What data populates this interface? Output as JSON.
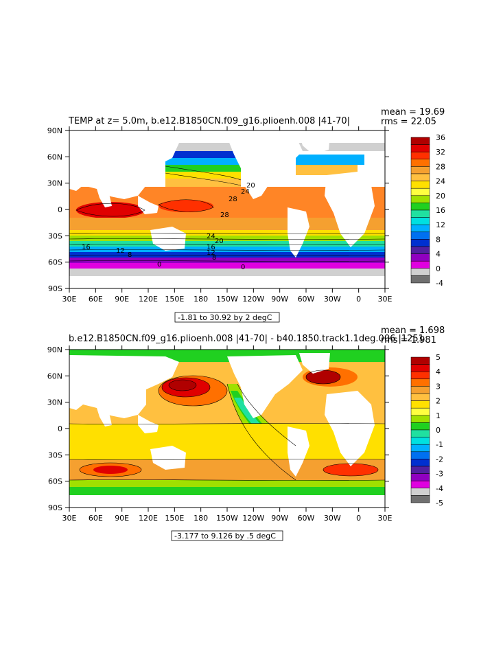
{
  "panels": [
    {
      "title": "TEMP at z=   5.0m, b.e12.B1850CN.f09_g16.plioenh.008 |41-70|",
      "mean_text": "mean = 19.69",
      "rms_text": "rms = 22.05",
      "range_text": "-1.81 to 30.92 by 2 degC",
      "lon_ticks": [
        "30E",
        "60E",
        "90E",
        "120E",
        "150E",
        "180",
        "150W",
        "120W",
        "90W",
        "60W",
        "30W",
        "0",
        "30E"
      ],
      "lat_ticks": [
        "90N",
        "60N",
        "30N",
        "0",
        "30S",
        "60S",
        "90S"
      ],
      "colorbar_labels": [
        "36",
        "32",
        "28",
        "24",
        "20",
        "16",
        "12",
        "8",
        "4",
        "0",
        "-4"
      ],
      "colorbar_colors": [
        "#b00000",
        "#e00000",
        "#ff3000",
        "#ff7000",
        "#f5a030",
        "#ffc040",
        "#ffe000",
        "#ffff40",
        "#a0e000",
        "#20d020",
        "#20e0a0",
        "#00e0e0",
        "#00b0ff",
        "#0070f0",
        "#0030d0",
        "#5020a0",
        "#9000c0",
        "#e000e0",
        "#d0d0d0",
        "#707070"
      ],
      "contour_labels": [
        "28",
        "28",
        "24",
        "20",
        "24",
        "20",
        "16",
        "12",
        "16",
        "12",
        "8",
        "8",
        "0",
        "0"
      ]
    },
    {
      "title": "b.e12.B1850CN.f09_g16.plioenh.008 |41-70| - b40.1850.track1.1deg.006 |1251",
      "mean_text": "mean = 1.698",
      "rms_text": "rms = 1.981",
      "range_text": "-3.177 to 9.126 by .5 degC",
      "lon_ticks": [
        "30E",
        "60E",
        "90E",
        "120E",
        "150E",
        "180",
        "150W",
        "120W",
        "90W",
        "60W",
        "30W",
        "0",
        "30E"
      ],
      "lat_ticks": [
        "90N",
        "60N",
        "30N",
        "0",
        "30S",
        "60S",
        "90S"
      ],
      "colorbar_labels": [
        "5",
        "4",
        "3",
        "2",
        "1",
        "0",
        "-1",
        "-2",
        "-3",
        "-4",
        "-5"
      ],
      "colorbar_colors": [
        "#b00000",
        "#e00000",
        "#ff3000",
        "#ff7000",
        "#f5a030",
        "#ffc040",
        "#ffe000",
        "#ffff40",
        "#a0e000",
        "#20d020",
        "#20e0a0",
        "#00e0e0",
        "#00b0ff",
        "#0070f0",
        "#0030d0",
        "#5020a0",
        "#9000c0",
        "#e000e0",
        "#d0d0d0",
        "#707070"
      ]
    }
  ]
}
